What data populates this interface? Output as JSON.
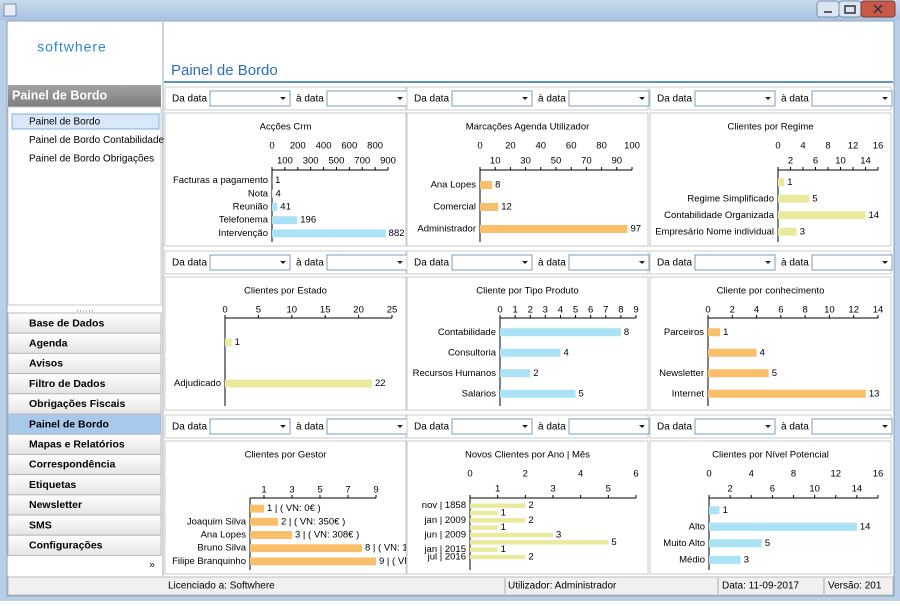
{
  "logo": "softwhere",
  "sidebar": {
    "header": "Painel de Bordo",
    "items": [
      "Painel de Bordo",
      "Painel de Bordo Contabilidade",
      "Painel de Bordo Obrigações"
    ],
    "menu": [
      "Base de Dados",
      "Agenda",
      "Avisos",
      "Filtro de Dados",
      "Obrigações Fiscais",
      "Painel de Bordo",
      "Mapas e Relatórios",
      "Correspondência",
      "Etiquetas",
      "Newsletter",
      "SMS",
      "Configurações"
    ]
  },
  "main_title": "Painel de Bordo",
  "filters": [
    {
      "from_label": "Da data",
      "to_label": "à data"
    },
    {
      "from_label": "Da data",
      "to_label": "à data"
    },
    {
      "from_label": "Da data",
      "to_label": "à data"
    },
    {
      "from_label": "Da data",
      "to_label": "à data"
    },
    {
      "from_label": "Da data",
      "to_label": "à data"
    },
    {
      "from_label": "Da data",
      "to_label": "à data"
    },
    {
      "from_label": "Da data",
      "to_label": "à data"
    },
    {
      "from_label": "Da data",
      "to_label": "à data"
    },
    {
      "from_label": "Da data",
      "to_label": "à data"
    }
  ],
  "status": [
    "Licenciado a: Softwhere",
    "Utilizador: Administrador",
    "Data: 11-09-2017",
    "Versão: 201"
  ],
  "chart_data": [
    {
      "type": "bar",
      "title": "Acções Crm",
      "color": "#a9e3f5",
      "categories": [
        "Facturas a pagamento",
        "Nota",
        "Reunião",
        "Telefonema",
        "Intervenção"
      ],
      "values": [
        1,
        4,
        41,
        196,
        882
      ],
      "xlim": [
        0,
        900
      ],
      "xticks": [
        0,
        100,
        200,
        300,
        400,
        500,
        600,
        700,
        800,
        900
      ]
    },
    {
      "type": "bar",
      "title": "Marcações Agenda Utilizador",
      "color": "#f9bf6a",
      "categories": [
        "Ana Lopes",
        "Comercial",
        "Administrador"
      ],
      "values": [
        8,
        12,
        97
      ],
      "xlim": [
        0,
        100
      ],
      "xticks": [
        0,
        10,
        20,
        30,
        40,
        50,
        60,
        70,
        80,
        90,
        100
      ]
    },
    {
      "type": "bar",
      "title": "Clientes por Regime",
      "color": "#eaea9e",
      "categories": [
        null,
        "Regime Simplificado",
        "Contabilidade Organizada",
        "Empresário Nome individual"
      ],
      "values": [
        1,
        5,
        14,
        3
      ],
      "xlim": [
        0,
        16
      ],
      "xticks": [
        0,
        2,
        4,
        6,
        8,
        10,
        12,
        14,
        16
      ]
    },
    {
      "type": "bar",
      "title": "Clientes por Estado",
      "color": "#eaea9e",
      "categories": [
        null,
        "Adjudicado"
      ],
      "values": [
        1,
        22
      ],
      "xlim": [
        0,
        25
      ],
      "xticks": [
        0,
        5,
        10,
        15,
        20,
        25
      ]
    },
    {
      "type": "bar",
      "title": "Cliente por Tipo Produto",
      "color": "#a9e3f5",
      "categories": [
        "Contabilidade",
        "Consultoria",
        "Recursos Humanos",
        "Salarios"
      ],
      "values": [
        8,
        4,
        2,
        5
      ],
      "xlim": [
        0,
        9
      ],
      "xticks": [
        0,
        1,
        2,
        3,
        4,
        5,
        6,
        7,
        8,
        9
      ]
    },
    {
      "type": "bar",
      "title": "Cliente por conhecimento",
      "color": "#f9bf6a",
      "categories": [
        "Parceiros",
        null,
        "Newsletter",
        "Internet"
      ],
      "values": [
        1,
        4,
        5,
        13
      ],
      "xlim": [
        0,
        14
      ],
      "xticks": [
        0,
        2,
        4,
        6,
        8,
        10,
        12,
        14
      ]
    },
    {
      "type": "bar",
      "title": "Clientes por Gestor",
      "color": "#f9bf6a",
      "categories": [
        null,
        "Joaquim Silva",
        "Ana Lopes",
        "Bruno Silva",
        "Filipe Branquinho"
      ],
      "values": [
        1,
        2,
        3,
        8,
        9
      ],
      "value_labels": [
        "1 | ( VN: 0€ )",
        "2 | ( VN: 350€ )",
        "3 | ( VN: 308€ )",
        "8 | ( VN: 1",
        "9 | ( VN"
      ],
      "xlim": [
        0,
        9
      ],
      "xticks": [
        1,
        3,
        5,
        7,
        9
      ]
    },
    {
      "type": "bar",
      "title": "Novos Clientes por Ano | Mês",
      "color": "#eaea9e",
      "categories": [
        "nov | 1858",
        null,
        "jan | 2009",
        null,
        "jun | 2009",
        null,
        "jan | 2015",
        "jul | 2016",
        null
      ],
      "values": [
        2,
        1,
        2,
        1,
        3,
        5,
        1,
        2,
        null
      ],
      "xlim": [
        0,
        6
      ],
      "xticks": [
        0,
        1,
        2,
        3,
        4,
        5,
        6
      ]
    },
    {
      "type": "bar",
      "title": "Clientes por Nível Potencial",
      "color": "#a9e3f5",
      "categories": [
        null,
        "Alto",
        "Muito Alto",
        "Médio"
      ],
      "values": [
        1,
        14,
        5,
        3
      ],
      "xlim": [
        0,
        16
      ],
      "xticks": [
        0,
        2,
        4,
        6,
        8,
        10,
        12,
        14,
        16
      ]
    }
  ]
}
